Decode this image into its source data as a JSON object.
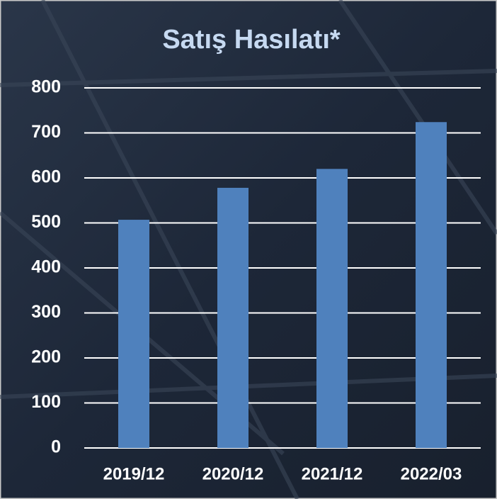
{
  "chart_data": {
    "type": "bar",
    "title": "Satış Hasılatı*",
    "categories": [
      "2019/12",
      "2020/12",
      "2021/12",
      "2022/03"
    ],
    "values": [
      507,
      578,
      620,
      724
    ],
    "color": "#4f81bd",
    "ylim": [
      0,
      800
    ],
    "yticks": [
      0,
      100,
      200,
      300,
      400,
      500,
      600,
      700,
      800
    ],
    "grid": true
  }
}
